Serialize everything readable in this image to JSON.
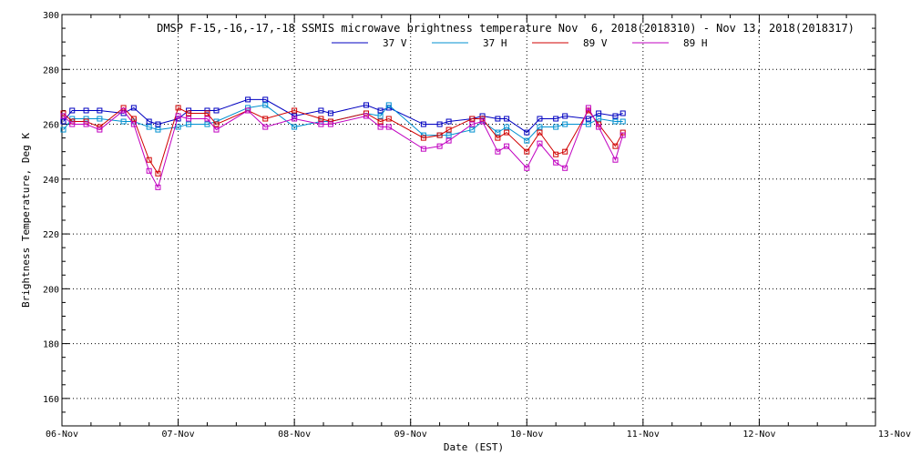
{
  "chart_data": {
    "type": "line",
    "title": "DMSP F-15,-16,-17,-18 SSMIS microwave brightness temperature Nov  6, 2018(2018310) - Nov 13, 2018(2018317)",
    "xlabel": "Date (EST)",
    "ylabel": "Brightness Temperature, Deg K",
    "xlim": [
      "2018-11-06",
      "2018-11-13"
    ],
    "ylim": [
      150,
      300
    ],
    "x_tick_labels": [
      "06-Nov",
      "07-Nov",
      "08-Nov",
      "09-Nov",
      "10-Nov",
      "11-Nov",
      "12-Nov",
      "13-Nov"
    ],
    "y_ticks": [
      160,
      180,
      200,
      220,
      240,
      260,
      280,
      300
    ],
    "grid": true,
    "legend_position": "top",
    "series": [
      {
        "name": "37 V",
        "color": "#0000c0",
        "x": [
          "2018-11-06T00:17",
          "2018-11-06T02:07",
          "2018-11-06T05:00",
          "2018-11-06T07:47",
          "2018-11-06T12:43",
          "2018-11-06T14:50",
          "2018-11-06T18:00",
          "2018-11-06T19:50",
          "2018-11-07T00:00",
          "2018-11-07T02:10",
          "2018-11-07T06:00",
          "2018-11-07T07:53",
          "2018-11-07T14:24",
          "2018-11-07T18:00",
          "2018-11-08T00:00",
          "2018-11-08T05:30",
          "2018-11-08T07:29",
          "2018-11-08T14:50",
          "2018-11-08T17:46",
          "2018-11-08T19:30",
          "2018-11-09T02:40",
          "2018-11-09T06:00",
          "2018-11-09T07:53",
          "2018-11-09T12:43",
          "2018-11-09T14:50",
          "2018-11-09T18:00",
          "2018-11-09T19:50",
          "2018-11-10T00:00",
          "2018-11-10T02:40",
          "2018-11-10T06:00",
          "2018-11-10T07:53",
          "2018-11-10T12:43",
          "2018-11-10T14:50",
          "2018-11-10T18:17",
          "2018-11-10T19:50"
        ],
        "values": [
          261,
          265,
          265,
          265,
          264,
          266,
          261,
          260,
          262,
          265,
          265,
          265,
          269,
          269,
          263,
          265,
          264,
          267,
          265,
          266,
          260,
          260,
          261,
          262,
          263,
          262,
          262,
          257,
          262,
          262,
          263,
          262,
          264,
          263,
          264
        ]
      },
      {
        "name": "37 H",
        "color": "#0090d0",
        "x": [
          "2018-11-06T00:17",
          "2018-11-06T02:07",
          "2018-11-06T05:00",
          "2018-11-06T07:47",
          "2018-11-06T12:43",
          "2018-11-06T14:50",
          "2018-11-06T18:00",
          "2018-11-06T19:50",
          "2018-11-07T00:00",
          "2018-11-07T02:10",
          "2018-11-07T06:00",
          "2018-11-07T07:53",
          "2018-11-07T14:24",
          "2018-11-07T18:00",
          "2018-11-08T00:00",
          "2018-11-08T05:30",
          "2018-11-08T07:29",
          "2018-11-08T14:50",
          "2018-11-08T17:46",
          "2018-11-08T19:30",
          "2018-11-09T02:40",
          "2018-11-09T06:00",
          "2018-11-09T07:53",
          "2018-11-09T12:43",
          "2018-11-09T14:50",
          "2018-11-09T18:00",
          "2018-11-09T19:50",
          "2018-11-10T00:00",
          "2018-11-10T02:40",
          "2018-11-10T06:00",
          "2018-11-10T07:53",
          "2018-11-10T12:43",
          "2018-11-10T14:50",
          "2018-11-10T18:17",
          "2018-11-10T19:50"
        ],
        "values": [
          258,
          262,
          262,
          262,
          261,
          261,
          259,
          258,
          259,
          260,
          260,
          261,
          266,
          267,
          259,
          261,
          261,
          264,
          263,
          267,
          256,
          256,
          256,
          258,
          261,
          257,
          259,
          254,
          259,
          259,
          260,
          260,
          262,
          261,
          261
        ]
      },
      {
        "name": "89 V",
        "color": "#d00000",
        "x": [
          "2018-11-06T00:17",
          "2018-11-06T02:07",
          "2018-11-06T05:00",
          "2018-11-06T07:47",
          "2018-11-06T12:43",
          "2018-11-06T14:50",
          "2018-11-06T18:00",
          "2018-11-06T19:50",
          "2018-11-07T00:00",
          "2018-11-07T02:10",
          "2018-11-07T06:00",
          "2018-11-07T07:53",
          "2018-11-07T14:24",
          "2018-11-07T18:00",
          "2018-11-08T00:00",
          "2018-11-08T05:30",
          "2018-11-08T07:29",
          "2018-11-08T14:50",
          "2018-11-08T17:46",
          "2018-11-08T19:30",
          "2018-11-09T02:40",
          "2018-11-09T06:00",
          "2018-11-09T07:53",
          "2018-11-09T12:43",
          "2018-11-09T14:50",
          "2018-11-09T18:00",
          "2018-11-09T19:50",
          "2018-11-10T00:00",
          "2018-11-10T02:40",
          "2018-11-10T06:00",
          "2018-11-10T07:53",
          "2018-11-10T12:43",
          "2018-11-10T14:50",
          "2018-11-10T18:17",
          "2018-11-10T19:50"
        ],
        "values": [
          264,
          261,
          261,
          259,
          266,
          262,
          247,
          242,
          266,
          264,
          264,
          260,
          265,
          262,
          265,
          262,
          261,
          264,
          261,
          262,
          255,
          256,
          258,
          262,
          262,
          255,
          257,
          250,
          257,
          249,
          250,
          265,
          260,
          252,
          257
        ]
      },
      {
        "name": "89 H",
        "color": "#c000c0",
        "x": [
          "2018-11-06T00:17",
          "2018-11-06T02:07",
          "2018-11-06T05:00",
          "2018-11-06T07:47",
          "2018-11-06T12:43",
          "2018-11-06T14:50",
          "2018-11-06T18:00",
          "2018-11-06T19:50",
          "2018-11-07T00:00",
          "2018-11-07T02:10",
          "2018-11-07T06:00",
          "2018-11-07T07:53",
          "2018-11-07T14:24",
          "2018-11-07T18:00",
          "2018-11-08T00:00",
          "2018-11-08T05:30",
          "2018-11-08T07:29",
          "2018-11-08T14:50",
          "2018-11-08T17:46",
          "2018-11-08T19:30",
          "2018-11-09T02:40",
          "2018-11-09T06:00",
          "2018-11-09T07:53",
          "2018-11-09T12:43",
          "2018-11-09T14:50",
          "2018-11-09T18:00",
          "2018-11-09T19:50",
          "2018-11-10T00:00",
          "2018-11-10T02:40",
          "2018-11-10T06:00",
          "2018-11-10T07:53",
          "2018-11-10T12:43",
          "2018-11-10T14:50",
          "2018-11-10T18:17",
          "2018-11-10T19:50"
        ],
        "values": [
          263,
          260,
          260,
          258,
          265,
          260,
          243,
          237,
          263,
          262,
          262,
          258,
          265,
          259,
          262,
          260,
          260,
          263,
          259,
          259,
          251,
          252,
          254,
          260,
          261,
          250,
          252,
          244,
          253,
          246,
          244,
          266,
          259,
          247,
          256
        ]
      }
    ]
  }
}
